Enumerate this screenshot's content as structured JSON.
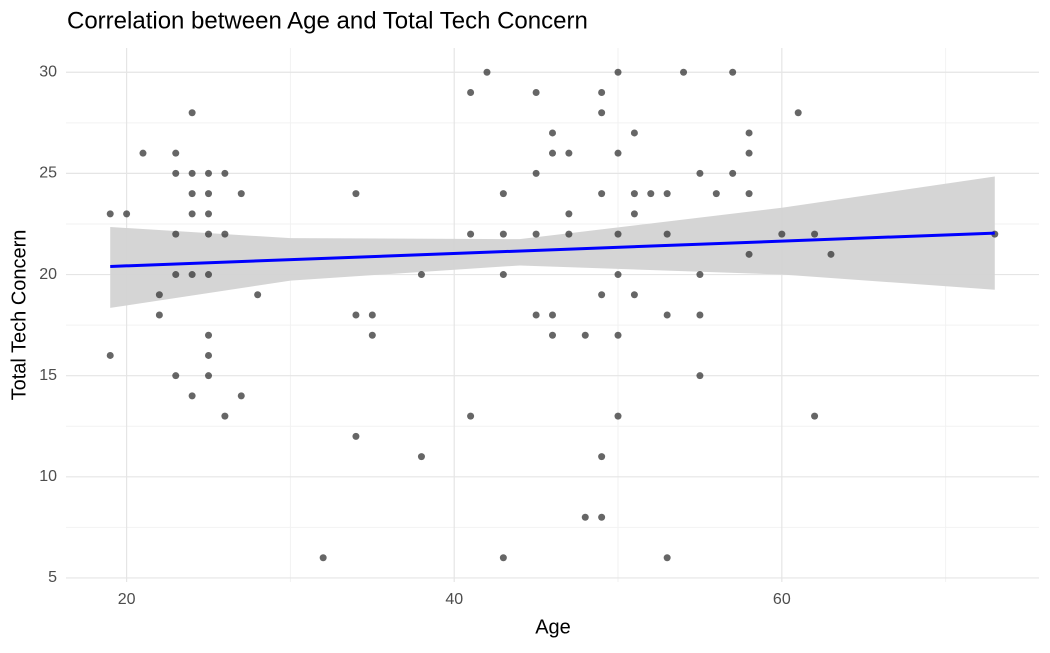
{
  "chart_data": {
    "type": "scatter",
    "title": "Correlation between Age and Total Tech Concern",
    "x_label": "Age",
    "y_label": "Total Tech Concern",
    "x": [
      19,
      19,
      20,
      21,
      22,
      22,
      23,
      23,
      23,
      23,
      23,
      24,
      24,
      24,
      24,
      24,
      24,
      25,
      25,
      25,
      25,
      25,
      25,
      25,
      25,
      26,
      26,
      26,
      27,
      27,
      28,
      32,
      34,
      34,
      34,
      35,
      35,
      38,
      38,
      41,
      41,
      41,
      42,
      43,
      43,
      43,
      43,
      45,
      45,
      45,
      45,
      46,
      46,
      46,
      46,
      47,
      47,
      47,
      48,
      48,
      49,
      49,
      49,
      49,
      49,
      49,
      50,
      50,
      50,
      50,
      50,
      50,
      51,
      51,
      51,
      51,
      52,
      53,
      53,
      53,
      53,
      54,
      55,
      55,
      55,
      55,
      56,
      57,
      57,
      58,
      58,
      58,
      58,
      60,
      61,
      62,
      62,
      63,
      73
    ],
    "values": [
      23,
      16,
      23,
      26,
      19,
      18,
      26,
      25,
      22,
      20,
      15,
      28,
      25,
      24,
      23,
      20,
      14,
      25,
      24,
      23,
      22,
      20,
      17,
      16,
      15,
      25,
      22,
      13,
      24,
      14,
      19,
      6,
      24,
      18,
      12,
      18,
      17,
      20,
      11,
      29,
      22,
      13,
      30,
      24,
      22,
      20,
      6,
      29,
      25,
      22,
      18,
      27,
      26,
      18,
      17,
      26,
      23,
      22,
      17,
      8,
      29,
      28,
      24,
      19,
      11,
      8,
      30,
      26,
      22,
      20,
      17,
      13,
      27,
      24,
      23,
      19,
      24,
      24,
      22,
      18,
      6,
      30,
      25,
      20,
      18,
      15,
      24,
      30,
      25,
      27,
      26,
      24,
      21,
      22,
      28,
      22,
      13,
      21,
      22
    ],
    "point_color": "#333333",
    "fit": {
      "x": [
        19,
        73
      ],
      "values": [
        20.4,
        22.05
      ],
      "color": "#0000ff"
    },
    "band": {
      "x": [
        19,
        30,
        44,
        60,
        73
      ],
      "lower": [
        18.35,
        19.7,
        20.45,
        20.0,
        19.25
      ],
      "upper": [
        22.35,
        21.8,
        21.75,
        23.3,
        24.85
      ],
      "color": "#d3d3d3"
    },
    "xlim": [
      16.3,
      75.7
    ],
    "ylim": [
      4.8,
      31.2
    ],
    "xticks": [
      20,
      40,
      60
    ],
    "yticks": [
      5,
      10,
      15,
      20,
      25,
      30
    ],
    "xminor": [
      30,
      50,
      70
    ],
    "yminor": [
      7.5,
      12.5,
      17.5,
      22.5,
      27.5
    ],
    "grid": true
  }
}
